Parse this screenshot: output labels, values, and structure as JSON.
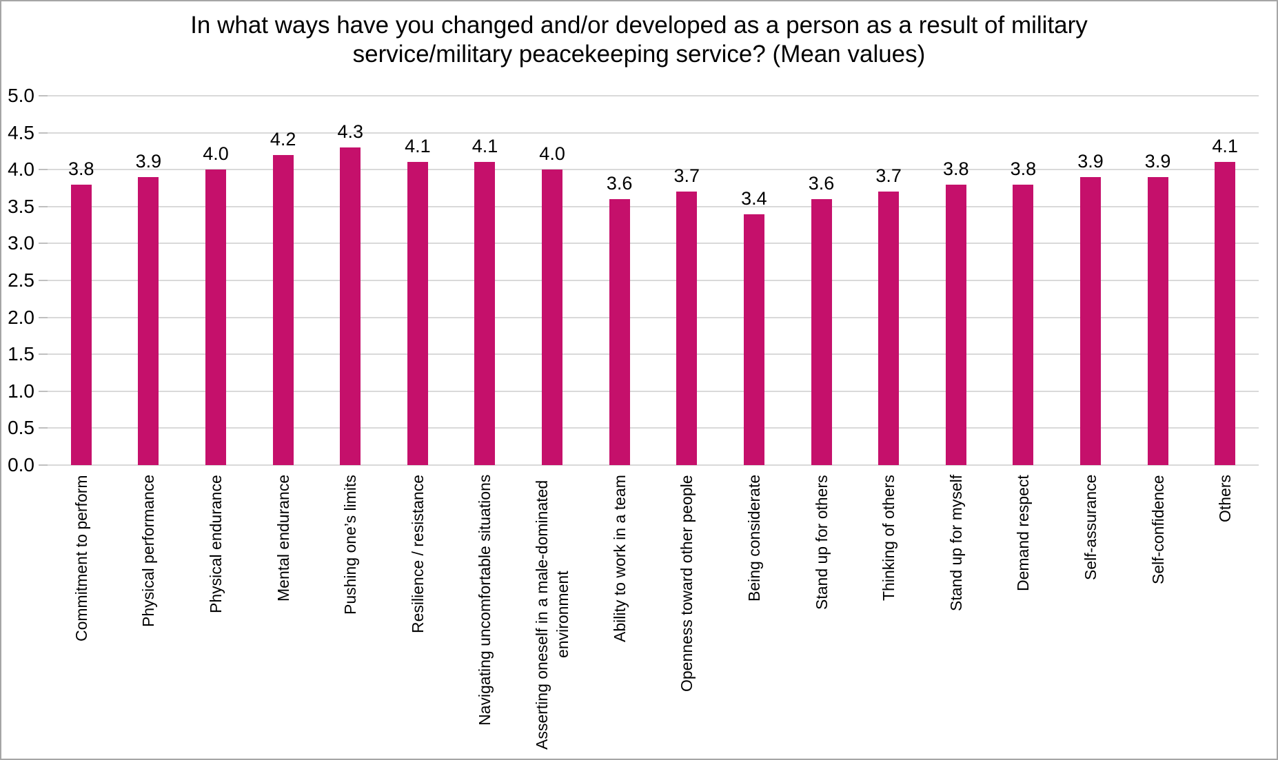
{
  "title": {
    "line1": "In what ways have you changed and/or developed as a person as a result of military",
    "line2": "service/military peacekeeping service? (Mean values)"
  },
  "chart_data": {
    "type": "bar",
    "title": "In what ways have you changed and/or developed as a person as a result of military service/military peacekeeping service? (Mean values)",
    "categories": [
      "Commitment to perform",
      "Physical performance",
      "Physical endurance",
      "Mental endurance",
      "Pushing one’s limits",
      "Resilience / resistance",
      "Navigating uncomfortable situations",
      "Asserting oneself in a male-dominated\nenvironment",
      "Ability to work in a team",
      "Openness toward other people",
      "Being considerate",
      "Stand up for others",
      "Thinking of others",
      "Stand up for myself",
      "Demand respect",
      "Self-assurance",
      "Self-confidence",
      "Others"
    ],
    "values": [
      3.8,
      3.9,
      4.0,
      4.2,
      4.3,
      4.1,
      4.1,
      4.0,
      3.6,
      3.7,
      3.4,
      3.6,
      3.7,
      3.8,
      3.8,
      3.9,
      3.9,
      4.1
    ],
    "data_labels": [
      "3.8",
      "3.9",
      "4.0",
      "4.2",
      "4.3",
      "4.1",
      "4.1",
      "4.0",
      "3.6",
      "3.7",
      "3.4",
      "3.6",
      "3.7",
      "3.8",
      "3.8",
      "3.9",
      "3.9",
      "4.1"
    ],
    "xlabel": "",
    "ylabel": "",
    "ylim": [
      0,
      5
    ],
    "ytick_step": 0.5,
    "yticks": [
      "0.0",
      "0.5",
      "1.0",
      "1.5",
      "2.0",
      "2.5",
      "3.0",
      "3.5",
      "4.0",
      "4.5",
      "5.0"
    ],
    "grid": true,
    "legend_position": "none",
    "bar_color": "#c5106b"
  },
  "colors": {
    "bar": "#c5106b",
    "gridline": "#d9d9d9",
    "axis_tick": "#bfbfbf",
    "frame_border": "#a6a6a6",
    "background": "#ffffff",
    "text": "#000000"
  }
}
